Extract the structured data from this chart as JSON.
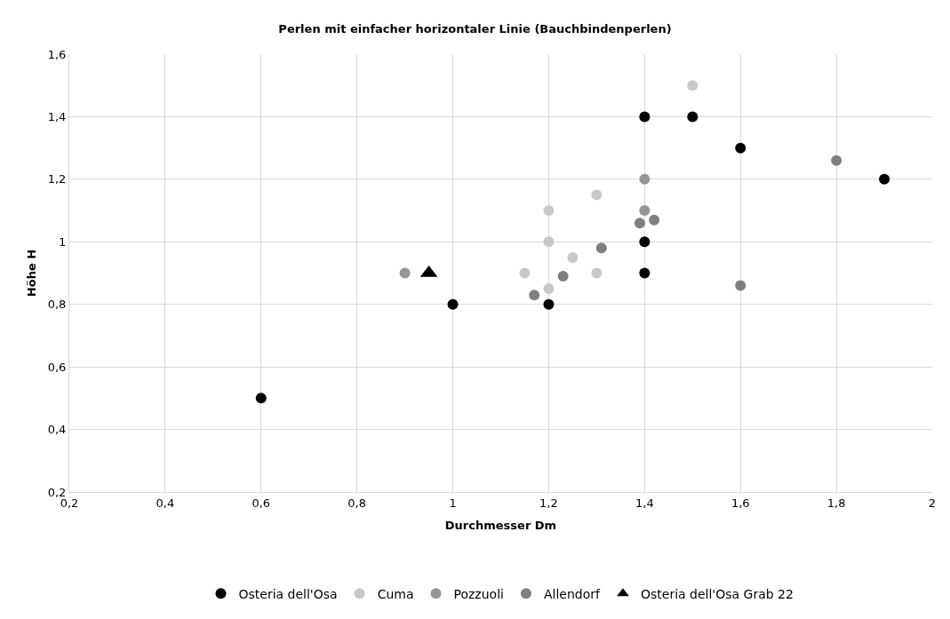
{
  "chart_data": {
    "type": "scatter",
    "title": "Perlen mit einfacher horizontaler Linie (Bauchbindenperlen)",
    "xlabel": "Durchmesser Dm",
    "ylabel": "Höhe H",
    "xlim": [
      0.2,
      2
    ],
    "xticks": [
      {
        "value": 0.2,
        "label": "0,2"
      },
      {
        "value": 0.4,
        "label": "0,4"
      },
      {
        "value": 0.6,
        "label": "0,6"
      },
      {
        "value": 0.8,
        "label": "0,8"
      },
      {
        "value": 1,
        "label": "1"
      },
      {
        "value": 1.2,
        "label": "1,2"
      },
      {
        "value": 1.4,
        "label": "1,4"
      },
      {
        "value": 1.6,
        "label": "1,6"
      },
      {
        "value": 1.8,
        "label": "1,8"
      },
      {
        "value": 2,
        "label": "2"
      }
    ],
    "ylim": [
      0.2,
      1.6
    ],
    "yticks": [
      {
        "value": 0.2,
        "label": "0,2"
      },
      {
        "value": 0.4,
        "label": "0,4"
      },
      {
        "value": 0.6,
        "label": "0,6"
      },
      {
        "value": 0.8,
        "label": "0,8"
      },
      {
        "value": 1,
        "label": "1"
      },
      {
        "value": 1.2,
        "label": "1,2"
      },
      {
        "value": 1.4,
        "label": "1,4"
      },
      {
        "value": 1.6,
        "label": "1,6"
      }
    ],
    "grid": true,
    "legend": "bottom",
    "series": [
      {
        "name": "Osteria dell'Osa",
        "color": "#000000",
        "marker": "circle",
        "x": [
          0.6,
          1,
          1.2,
          1.4,
          1.5,
          1.6,
          1.9,
          1.4,
          1.4
        ],
        "values": [
          0.5,
          0.8,
          0.8,
          1.4,
          1.4,
          1.3,
          1.2,
          1.0,
          0.9
        ]
      },
      {
        "name": "Cuma",
        "color": "#c8c8c8",
        "marker": "circle",
        "x": [
          1.5,
          1.2,
          1.3,
          1.2,
          1.25,
          1.15,
          1.3,
          1.2
        ],
        "values": [
          1.5,
          1.1,
          1.15,
          1.0,
          0.95,
          0.9,
          0.9,
          0.85
        ]
      },
      {
        "name": "Pozzuoli",
        "color": "#969696",
        "marker": "circle",
        "x": [
          0.9,
          1.4,
          1.4
        ],
        "values": [
          0.9,
          1.2,
          1.1
        ]
      },
      {
        "name": "Allendorf",
        "color": "#7f7f7f",
        "marker": "circle",
        "x": [
          1.8,
          1.39,
          1.42,
          1.31,
          1.23,
          1.17,
          1.6
        ],
        "values": [
          1.26,
          1.06,
          1.07,
          0.98,
          0.89,
          0.83,
          0.86
        ]
      },
      {
        "name": "Osteria dell'Osa Grab 22",
        "color": "#000000",
        "marker": "triangle",
        "x": [
          0.95
        ],
        "values": [
          0.9
        ]
      }
    ]
  }
}
